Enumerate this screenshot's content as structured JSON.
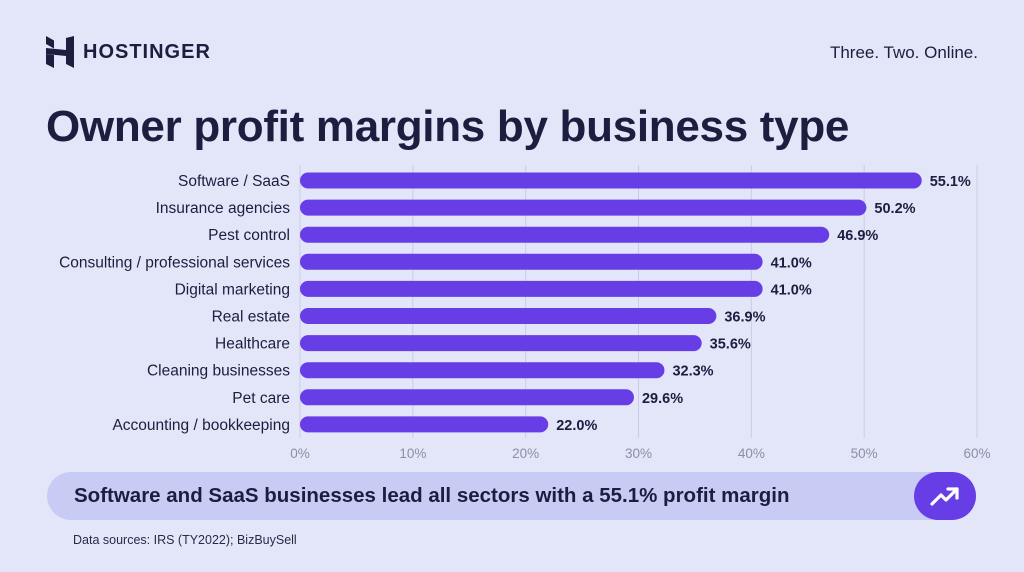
{
  "brand": {
    "name": "HOSTINGER",
    "logo_icon": "hostinger-h-logo-icon",
    "tagline": "Three. Two. Online."
  },
  "colors": {
    "background": "#e3e6f9",
    "bar": "#673de6",
    "text": "#1d1d3f",
    "callout_bg": "#c8cbf4",
    "grid": "#c9cce6"
  },
  "chart_data": {
    "type": "bar",
    "orientation": "horizontal",
    "title": "Owner profit margins by business type",
    "categories": [
      "Software / SaaS",
      "Insurance agencies",
      "Pest control",
      "Consulting / professional services",
      "Digital marketing",
      "Real estate",
      "Healthcare",
      "Cleaning businesses",
      "Pet care",
      "Accounting / bookkeeping"
    ],
    "values": [
      55.1,
      50.2,
      46.9,
      41.0,
      41.0,
      36.9,
      35.6,
      32.3,
      29.6,
      22.0
    ],
    "value_labels": [
      "55.1%",
      "50.2%",
      "46.9%",
      "41.0%",
      "41.0%",
      "36.9%",
      "35.6%",
      "32.3%",
      "29.6%",
      "22.0%"
    ],
    "xlim": [
      0,
      60
    ],
    "xticks": [
      0,
      10,
      20,
      30,
      40,
      50,
      60
    ],
    "xtick_labels": [
      "0%",
      "10%",
      "20%",
      "30%",
      "40%",
      "50%",
      "60%"
    ],
    "grid": "vertical",
    "legend": "none"
  },
  "callout": {
    "text": "Software and SaaS businesses lead all sectors with a 55.1% profit margin",
    "icon": "trending-up-icon"
  },
  "source": "Data sources: IRS (TY2022); BizBuySell"
}
